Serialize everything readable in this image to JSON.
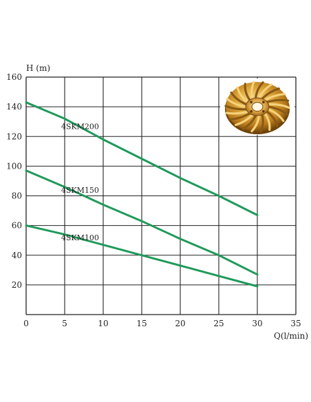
{
  "chart_data": {
    "type": "line",
    "title": "",
    "xlabel": "Q(l/min)",
    "ylabel": "H (m)",
    "xlim": [
      0,
      35
    ],
    "ylim": [
      0,
      160
    ],
    "xticks": [
      0,
      5,
      10,
      15,
      20,
      25,
      30,
      35
    ],
    "yticks": [
      20,
      40,
      60,
      80,
      100,
      120,
      140,
      160
    ],
    "grid": true,
    "line_color": "#1f9a5a",
    "grid_color": "#222222",
    "series": [
      {
        "name": "4SKM200",
        "x": [
          0,
          5,
          10,
          15,
          20,
          25,
          30
        ],
        "y": [
          143,
          132,
          118,
          105,
          92,
          80,
          67
        ]
      },
      {
        "name": "4SKM150",
        "x": [
          0,
          5,
          10,
          15,
          20,
          25,
          30
        ],
        "y": [
          97,
          86,
          74,
          63,
          51,
          40,
          27
        ]
      },
      {
        "name": "4SKM100",
        "x": [
          0,
          5,
          10,
          15,
          20,
          25,
          30
        ],
        "y": [
          60,
          54,
          47,
          40,
          33,
          26,
          19
        ]
      }
    ],
    "series_label_positions": [
      {
        "series": "4SKM200",
        "x": 7,
        "y": 125
      },
      {
        "series": "4SKM150",
        "x": 7,
        "y": 82
      },
      {
        "series": "4SKM100",
        "x": 7,
        "y": 50
      }
    ],
    "inset_image": "brass-impeller"
  }
}
